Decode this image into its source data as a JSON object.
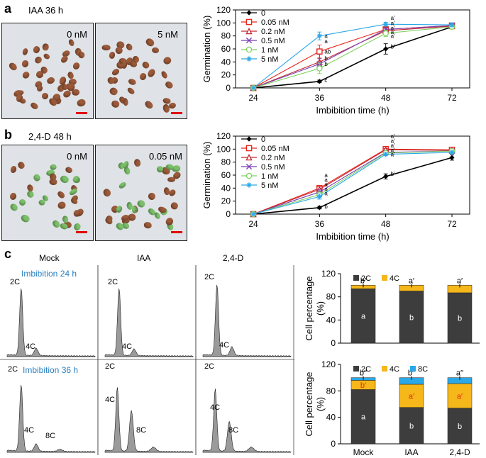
{
  "panel_a": {
    "label": "a",
    "header": "IAA   36 h",
    "photos": [
      {
        "label": "0 nM"
      },
      {
        "label": "5 nM"
      }
    ]
  },
  "panel_b": {
    "label": "b",
    "header": "2,4-D    48 h",
    "photos": [
      {
        "label": "0 nM"
      },
      {
        "label": "0.05 nM"
      }
    ]
  },
  "panel_c": {
    "label": "c",
    "columns": [
      "Mock",
      "IAA",
      "2,4-D"
    ],
    "row_labels": [
      "Imbibition 24 h",
      "Imbibition 36 h"
    ],
    "row_label_color": "#2a7fc0",
    "peaks_row1": [
      "2C",
      "4C"
    ],
    "peaks_row2": [
      "2C",
      "4C",
      "8C"
    ]
  },
  "chart_data": [
    {
      "type": "line",
      "xlabel": "Imbibition time (h)",
      "ylabel": "Germination (%)",
      "x": [
        24,
        36,
        48,
        72
      ],
      "ylim": [
        0,
        120
      ],
      "yticks": [
        0,
        20,
        40,
        60,
        80,
        100,
        120
      ],
      "legend_position": "top-left",
      "series": [
        {
          "name": "0",
          "color": "#000000",
          "marker": "diamond",
          "values": [
            0,
            10,
            60,
            94
          ],
          "err": [
            0,
            2,
            8,
            3
          ]
        },
        {
          "name": "0.05 nM",
          "color": "#e8261c",
          "marker": "square",
          "values": [
            0,
            56,
            90,
            96
          ],
          "err": [
            0,
            10,
            5,
            3
          ]
        },
        {
          "name": "0.2 nM",
          "color": "#c0262e",
          "marker": "triangle",
          "values": [
            0,
            40,
            88,
            95
          ],
          "err": [
            0,
            12,
            5,
            3
          ]
        },
        {
          "name": "0.5 nM",
          "color": "#7a3fb5",
          "marker": "x",
          "values": [
            0,
            37,
            90,
            96
          ],
          "err": [
            0,
            8,
            5,
            3
          ]
        },
        {
          "name": "1 nM",
          "color": "#7dd35f",
          "marker": "circle",
          "values": [
            0,
            30,
            84,
            94
          ],
          "err": [
            0,
            8,
            5,
            3
          ]
        },
        {
          "name": "5 nM",
          "color": "#2aa8e8",
          "marker": "star",
          "values": [
            0,
            80,
            98,
            97
          ],
          "err": [
            0,
            6,
            3,
            3
          ]
        }
      ],
      "annotations": [
        {
          "x": 36,
          "y": 80,
          "text": "a"
        },
        {
          "x": 36,
          "y": 72,
          "text": "a"
        },
        {
          "x": 36,
          "y": 56,
          "text": "ab"
        },
        {
          "x": 36,
          "y": 46,
          "text": "b"
        },
        {
          "x": 36,
          "y": 37,
          "text": "b"
        },
        {
          "x": 36,
          "y": 12,
          "text": "c"
        },
        {
          "x": 48,
          "y": 108,
          "text": "a′"
        },
        {
          "x": 48,
          "y": 100,
          "text": "a′"
        },
        {
          "x": 48,
          "y": 92,
          "text": "a′"
        },
        {
          "x": 48,
          "y": 86,
          "text": "a′"
        },
        {
          "x": 48,
          "y": 80,
          "text": "a′"
        },
        {
          "x": 48,
          "y": 64,
          "text": "b′"
        }
      ]
    },
    {
      "type": "line",
      "xlabel": "Imbibition time (h)",
      "ylabel": "Germination (%)",
      "x": [
        24,
        36,
        48,
        72
      ],
      "ylim": [
        0,
        120
      ],
      "yticks": [
        0,
        20,
        40,
        60,
        80,
        100,
        120
      ],
      "legend_position": "top-left",
      "series": [
        {
          "name": "0",
          "color": "#000000",
          "marker": "diamond",
          "values": [
            0,
            10,
            58,
            87
          ],
          "err": [
            0,
            2,
            4,
            4
          ]
        },
        {
          "name": "0.05 nM",
          "color": "#e8261c",
          "marker": "square",
          "values": [
            0,
            40,
            100,
            99
          ],
          "err": [
            0,
            4,
            2,
            2
          ]
        },
        {
          "name": "0.2 nM",
          "color": "#c0262e",
          "marker": "triangle",
          "values": [
            0,
            38,
            99,
            98
          ],
          "err": [
            0,
            4,
            2,
            2
          ]
        },
        {
          "name": "0.5 nM",
          "color": "#7a3fb5",
          "marker": "x",
          "values": [
            0,
            34,
            95,
            97
          ],
          "err": [
            0,
            4,
            2,
            2
          ]
        },
        {
          "name": "1 nM",
          "color": "#7dd35f",
          "marker": "circle",
          "values": [
            0,
            30,
            94,
            97
          ],
          "err": [
            0,
            4,
            2,
            2
          ]
        },
        {
          "name": "5 nM",
          "color": "#2aa8e8",
          "marker": "star",
          "values": [
            0,
            27,
            92,
            95
          ],
          "err": [
            0,
            4,
            2,
            2
          ]
        }
      ],
      "annotations": [
        {
          "x": 36,
          "y": 60,
          "text": "a"
        },
        {
          "x": 36,
          "y": 53,
          "text": "a"
        },
        {
          "x": 36,
          "y": 46,
          "text": "a"
        },
        {
          "x": 36,
          "y": 39,
          "text": "a"
        },
        {
          "x": 36,
          "y": 32,
          "text": "a"
        },
        {
          "x": 36,
          "y": 12,
          "text": "b"
        },
        {
          "x": 48,
          "y": 120,
          "text": "a′"
        },
        {
          "x": 48,
          "y": 113,
          "text": "a′"
        },
        {
          "x": 48,
          "y": 106,
          "text": "a′"
        },
        {
          "x": 48,
          "y": 99,
          "text": "a′"
        },
        {
          "x": 48,
          "y": 92,
          "text": "a′"
        },
        {
          "x": 48,
          "y": 62,
          "text": "b′"
        }
      ]
    },
    {
      "type": "bar",
      "stacked": true,
      "categories": [
        "Mock",
        "IAA",
        "2,4-D"
      ],
      "ylabel": "Cell percentage (%)",
      "ylim": [
        0,
        120
      ],
      "yticks": [
        0,
        20,
        40,
        60,
        80,
        100,
        120
      ],
      "legend_position": "top",
      "series": [
        {
          "name": "2C",
          "color": "#3d3d3d",
          "values": [
            94,
            90,
            87
          ]
        },
        {
          "name": "4C",
          "color": "#f5b719",
          "values": [
            6,
            10,
            13
          ]
        }
      ],
      "annotations": [
        {
          "category": "Mock",
          "text": "a"
        },
        {
          "category": "Mock",
          "text": "b′"
        },
        {
          "category": "IAA",
          "text": "b"
        },
        {
          "category": "IAA",
          "text": "a′"
        },
        {
          "category": "2,4-D",
          "text": "b"
        },
        {
          "category": "2,4-D",
          "text": "a′"
        }
      ]
    },
    {
      "type": "bar",
      "stacked": true,
      "categories": [
        "Mock",
        "IAA",
        "2,4-D"
      ],
      "ylabel": "Cell percentage (%)",
      "ylim": [
        0,
        120
      ],
      "yticks": [
        0,
        20,
        40,
        60,
        80,
        100,
        120
      ],
      "legend_position": "top",
      "series": [
        {
          "name": "2C",
          "color": "#3d3d3d",
          "values": [
            82,
            55,
            54
          ]
        },
        {
          "name": "4C",
          "color": "#f5b719",
          "values": [
            14,
            35,
            37
          ]
        },
        {
          "name": "8C",
          "color": "#2aa8e8",
          "values": [
            4,
            10,
            9
          ]
        }
      ],
      "annotations": [
        {
          "category": "Mock",
          "text": "a"
        },
        {
          "category": "Mock",
          "text": "b′"
        },
        {
          "category": "Mock",
          "text": "b′′"
        },
        {
          "category": "IAA",
          "text": "b"
        },
        {
          "category": "IAA",
          "text": "a′"
        },
        {
          "category": "IAA",
          "text": "b′′"
        },
        {
          "category": "2,4-D",
          "text": "b"
        },
        {
          "category": "2,4-D",
          "text": "a′"
        },
        {
          "category": "2,4-D",
          "text": "a′′"
        }
      ]
    }
  ]
}
